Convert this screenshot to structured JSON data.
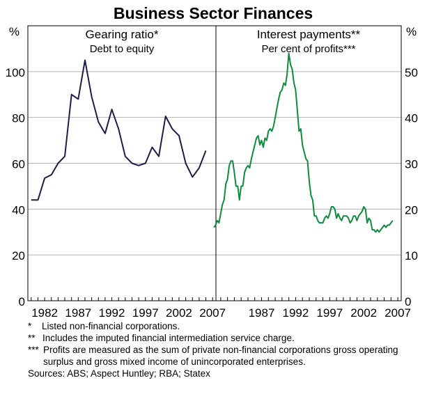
{
  "chart_data": {
    "type": "line",
    "title": "Business Sector Finances",
    "panels": [
      {
        "title": "Gearing ratio*",
        "subtitle": "Debt to equity",
        "unit": "%",
        "ylim": [
          0,
          120
        ],
        "yticks": [
          0,
          20,
          40,
          60,
          80,
          100
        ],
        "xlim": [
          1979.5,
          2007.5
        ],
        "xticks": [
          1982,
          1987,
          1992,
          1997,
          2002,
          2007
        ],
        "color": "#1b1f45",
        "series": [
          {
            "name": "",
            "x": [
              1980,
              1981,
              1982,
              1983,
              1984,
              1985,
              1986,
              1987,
              1988,
              1989,
              1990,
              1991,
              1992,
              1993,
              1994,
              1995,
              1996,
              1997,
              1998,
              1999,
              2000,
              2001,
              2002,
              2003,
              2004,
              2005,
              2006
            ],
            "y": [
              44,
              44,
              53.5,
              55,
              60,
              63,
              90,
              88,
              105,
              89,
              78,
              73,
              83.5,
              75,
              63,
              60,
              59,
              60,
              67,
              63,
              80.5,
              75,
              72,
              60,
              54,
              58,
              65.5
            ]
          }
        ]
      },
      {
        "title": "Interest payments**",
        "subtitle": "Per cent of profits***",
        "unit": "%",
        "ylim": [
          0,
          60
        ],
        "yticks": [
          0,
          10,
          20,
          30,
          40,
          50
        ],
        "xlim": [
          1980.3,
          2007.5
        ],
        "xticks": [
          1987,
          1992,
          1997,
          2002,
          2007
        ],
        "color": "#0f8a3e",
        "series": [
          {
            "name": "",
            "x": [
              1980.0,
              1980.25,
              1980.5,
              1980.75,
              1981.0,
              1981.25,
              1981.5,
              1981.75,
              1982.0,
              1982.25,
              1982.5,
              1982.75,
              1983.0,
              1983.25,
              1983.5,
              1983.75,
              1984.0,
              1984.25,
              1984.5,
              1984.75,
              1985.0,
              1985.25,
              1985.5,
              1985.75,
              1986.0,
              1986.25,
              1986.5,
              1986.75,
              1987.0,
              1987.25,
              1987.5,
              1987.75,
              1988.0,
              1988.25,
              1988.5,
              1988.75,
              1989.0,
              1989.25,
              1989.5,
              1989.75,
              1990.0,
              1990.25,
              1990.5,
              1990.75,
              1991.0,
              1991.25,
              1991.5,
              1991.75,
              1992.0,
              1992.25,
              1992.5,
              1992.75,
              1993.0,
              1993.25,
              1993.5,
              1993.75,
              1994.0,
              1994.25,
              1994.5,
              1994.75,
              1995.0,
              1995.25,
              1995.5,
              1995.75,
              1996.0,
              1996.25,
              1996.5,
              1996.75,
              1997.0,
              1997.25,
              1997.5,
              1997.75,
              1998.0,
              1998.25,
              1998.5,
              1998.75,
              1999.0,
              1999.25,
              1999.5,
              1999.75,
              2000.0,
              2000.25,
              2000.5,
              2000.75,
              2001.0,
              2001.25,
              2001.5,
              2001.75,
              2002.0,
              2002.25,
              2002.5,
              2002.75,
              2003.0,
              2003.25,
              2003.5,
              2003.75,
              2004.0,
              2004.25,
              2004.5,
              2004.75,
              2005.0,
              2005.25,
              2005.5,
              2005.75,
              2006.0,
              2006.25
            ],
            "y": [
              16,
              16.5,
              17.5,
              17,
              19,
              21,
              22,
              25.5,
              26.5,
              29.5,
              30.5,
              30.5,
              28,
              25,
              25,
              22,
              25,
              25,
              28,
              29,
              29.5,
              29,
              31,
              32.5,
              34,
              35.5,
              36,
              34,
              35,
              33.5,
              35.5,
              35,
              37,
              37.5,
              37,
              38,
              40,
              42,
              44,
              45.5,
              46,
              47.5,
              47,
              49.5,
              54,
              51.5,
              50.5,
              47.5,
              46,
              41.5,
              37,
              37.5,
              34,
              32.5,
              31,
              30.5,
              26,
              23,
              22,
              18.5,
              18.5,
              17.5,
              17,
              17,
              17,
              18,
              18.5,
              18,
              19,
              20.5,
              20.5,
              20,
              18,
              19,
              18,
              17.5,
              18.5,
              18.5,
              18.5,
              18,
              17,
              17.5,
              18.5,
              18.5,
              17.5,
              18.5,
              19,
              19.5,
              20.5,
              20,
              17,
              18,
              17.5,
              15.5,
              15.5,
              15,
              15.5,
              15,
              15.5,
              16,
              16.5,
              16,
              16.5,
              16.5,
              17,
              17.5
            ]
          }
        ]
      }
    ],
    "grid": true,
    "right_axis_unit": "%"
  },
  "notes": [
    {
      "mark": "*",
      "text": "Listed non-financial corporations."
    },
    {
      "mark": "**",
      "text": "Includes the imputed financial intermediation service charge."
    },
    {
      "mark": "***",
      "text": "Profits are measured as the sum of private non-financial corporations  gross operating surplus and gross mixed income of unincorporated enterprises."
    }
  ],
  "sources": "Sources: ABS; Aspect Huntley; RBA; Statex"
}
